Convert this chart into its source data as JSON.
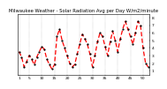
{
  "title": "Milwaukee Weather - Solar Radiation Avg per Day W/m2/minute",
  "ylim": [
    0.5,
    8.5
  ],
  "xlim": [
    0.5,
    52.5
  ],
  "background_color": "#ffffff",
  "line_color": "#ff0000",
  "dot_color": "#000000",
  "grid_color": "#888888",
  "x_values": [
    1,
    2,
    3,
    4,
    5,
    6,
    7,
    8,
    9,
    10,
    11,
    12,
    13,
    14,
    15,
    16,
    17,
    18,
    19,
    20,
    21,
    22,
    23,
    24,
    25,
    26,
    27,
    28,
    29,
    30,
    31,
    32,
    33,
    34,
    35,
    36,
    37,
    38,
    39,
    40,
    41,
    42,
    43,
    44,
    45,
    46,
    47,
    48,
    49,
    50,
    51,
    52
  ],
  "y_values": [
    3.5,
    2.8,
    1.5,
    2.2,
    3.0,
    2.5,
    1.8,
    2.8,
    3.5,
    4.2,
    3.8,
    2.5,
    1.8,
    1.2,
    1.8,
    5.5,
    6.5,
    5.0,
    4.0,
    3.0,
    2.0,
    1.5,
    1.8,
    3.2,
    4.5,
    5.8,
    5.2,
    4.5,
    3.2,
    1.5,
    3.0,
    4.8,
    6.0,
    5.5,
    4.2,
    3.0,
    4.8,
    6.2,
    5.0,
    3.5,
    5.2,
    6.5,
    7.5,
    6.5,
    5.5,
    4.5,
    6.0,
    7.5,
    7.0,
    4.0,
    2.0,
    1.5
  ],
  "ytick_positions": [
    1,
    2,
    3,
    4,
    5,
    6,
    7,
    8
  ],
  "xtick_positions": [
    1,
    5,
    10,
    15,
    20,
    25,
    30,
    35,
    40,
    45,
    50
  ],
  "xtick_labels": [
    "1",
    "5",
    "10",
    "15",
    "20",
    "25",
    "30",
    "35",
    "40",
    "45",
    "50"
  ],
  "title_fontsize": 3.8,
  "axis_fontsize": 3.2,
  "line_width": 0.9,
  "marker_size": 1.2
}
